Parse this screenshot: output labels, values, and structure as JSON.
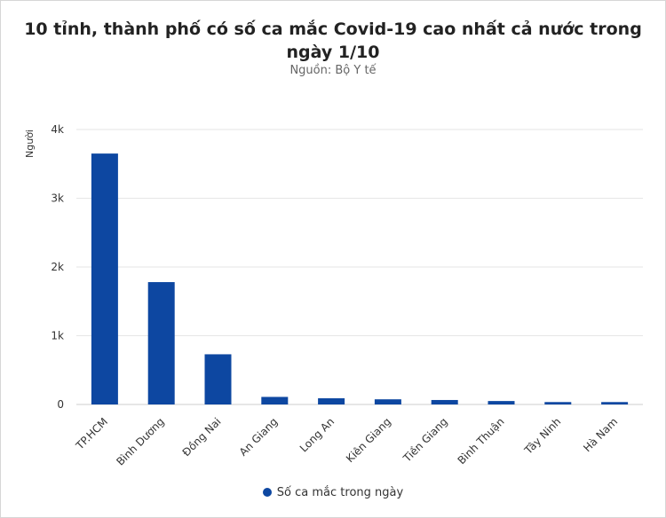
{
  "chart_data": {
    "type": "bar",
    "title": "10 tỉnh, thành phố có số ca mắc Covid-19 cao nhất cả nước trong ngày 1/10",
    "subtitle": "Nguồn: Bộ Y tế",
    "xlabel": "",
    "ylabel": "Người",
    "ylim": [
      0,
      4000
    ],
    "yticks": [
      0,
      1000,
      2000,
      3000,
      4000
    ],
    "ytick_labels": [
      "0",
      "1k",
      "2k",
      "3k",
      "4k"
    ],
    "categories": [
      "TP.HCM",
      "Bình Dương",
      "Đồng Nai",
      "An Giang",
      "Long An",
      "Kiên Giang",
      "Tiền Giang",
      "Bình Thuận",
      "Tây Ninh",
      "Hà Nam"
    ],
    "series": [
      {
        "name": "Số ca mắc trong ngày",
        "color": "#0d47a1",
        "values": [
          3650,
          1780,
          730,
          110,
          90,
          75,
          65,
          50,
          35,
          35
        ]
      }
    ],
    "grid": true,
    "legend_position": "bottom"
  }
}
